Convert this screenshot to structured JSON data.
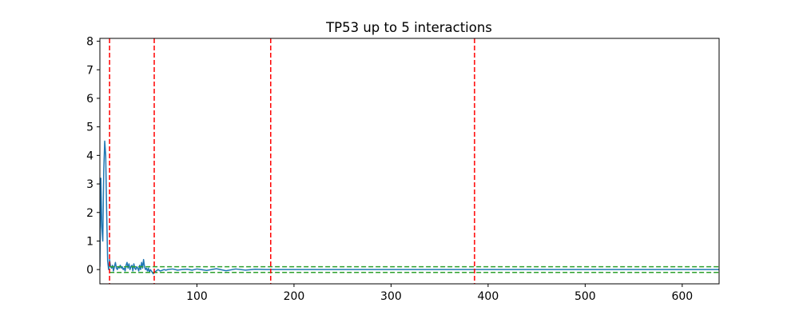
{
  "chart_data": {
    "type": "line",
    "title": "TP53 up to 5 interactions",
    "xlabel": "",
    "ylabel": "",
    "xlim": [
      0,
      638
    ],
    "ylim": [
      -0.5,
      8.1
    ],
    "x_ticks": [
      100,
      200,
      300,
      400,
      500,
      600
    ],
    "y_ticks": [
      0,
      1,
      2,
      3,
      4,
      5,
      6,
      7,
      8
    ],
    "grid": false,
    "series": [
      {
        "color": "#1f77b4",
        "x": [
          0,
          1,
          2,
          3,
          4,
          5,
          6,
          7,
          8,
          9,
          10,
          11,
          12,
          13,
          14,
          15,
          16,
          17,
          18,
          19,
          20,
          21,
          22,
          23,
          24,
          25,
          26,
          27,
          28,
          29,
          30,
          31,
          32,
          33,
          34,
          35,
          36,
          37,
          38,
          39,
          40,
          41,
          42,
          43,
          44,
          45,
          46,
          47,
          48,
          49,
          50,
          51,
          52,
          53,
          54,
          55,
          56,
          58,
          60,
          62,
          64,
          66,
          68,
          70,
          75,
          80,
          85,
          90,
          95,
          100,
          110,
          120,
          130,
          140,
          150,
          160,
          170,
          176,
          200,
          250,
          300,
          350,
          385,
          400,
          450,
          500,
          550,
          600,
          638
        ],
        "y": [
          0.1,
          3.2,
          1.5,
          1.0,
          3.5,
          4.5,
          4.0,
          2.0,
          0.3,
          0.0,
          0.35,
          0.1,
          0.05,
          0.15,
          -0.05,
          0.1,
          0.25,
          0.05,
          0.0,
          0.1,
          0.05,
          0.15,
          0.05,
          0.1,
          0.0,
          0.05,
          -0.05,
          0.15,
          0.25,
          0.05,
          0.2,
          0.0,
          0.1,
          0.15,
          -0.05,
          0.2,
          0.05,
          0.0,
          0.1,
          0.05,
          -0.05,
          0.15,
          0.0,
          0.25,
          0.05,
          0.35,
          0.1,
          0.0,
          0.05,
          -0.05,
          0.05,
          -0.1,
          0.0,
          -0.05,
          -0.1,
          -0.15,
          -0.1,
          -0.05,
          0.0,
          -0.05,
          -0.03,
          0.0,
          -0.02,
          0.0,
          0.02,
          -0.02,
          0.0,
          0.01,
          -0.02,
          0.02,
          -0.03,
          0.03,
          -0.04,
          0.02,
          -0.02,
          0.01,
          0.0,
          0.0,
          0.0,
          0.0,
          0.0,
          0.0,
          0.0,
          0.0,
          0.0,
          0.0,
          0.0,
          0.0,
          0.0
        ]
      }
    ],
    "vlines": [
      {
        "x": 10,
        "color": "#ff0000",
        "style": "dashed"
      },
      {
        "x": 56,
        "color": "#ff0000",
        "style": "dashed"
      },
      {
        "x": 176,
        "color": "#ff0000",
        "style": "dashed"
      },
      {
        "x": 386,
        "color": "#ff0000",
        "style": "dashed"
      }
    ],
    "hlines": [
      {
        "y": 0.1,
        "xmin": 10,
        "xmax": 638,
        "color": "#2ca02c",
        "style": "dashed"
      },
      {
        "y": -0.1,
        "xmin": 10,
        "xmax": 638,
        "color": "#2ca02c",
        "style": "dashed"
      }
    ]
  }
}
